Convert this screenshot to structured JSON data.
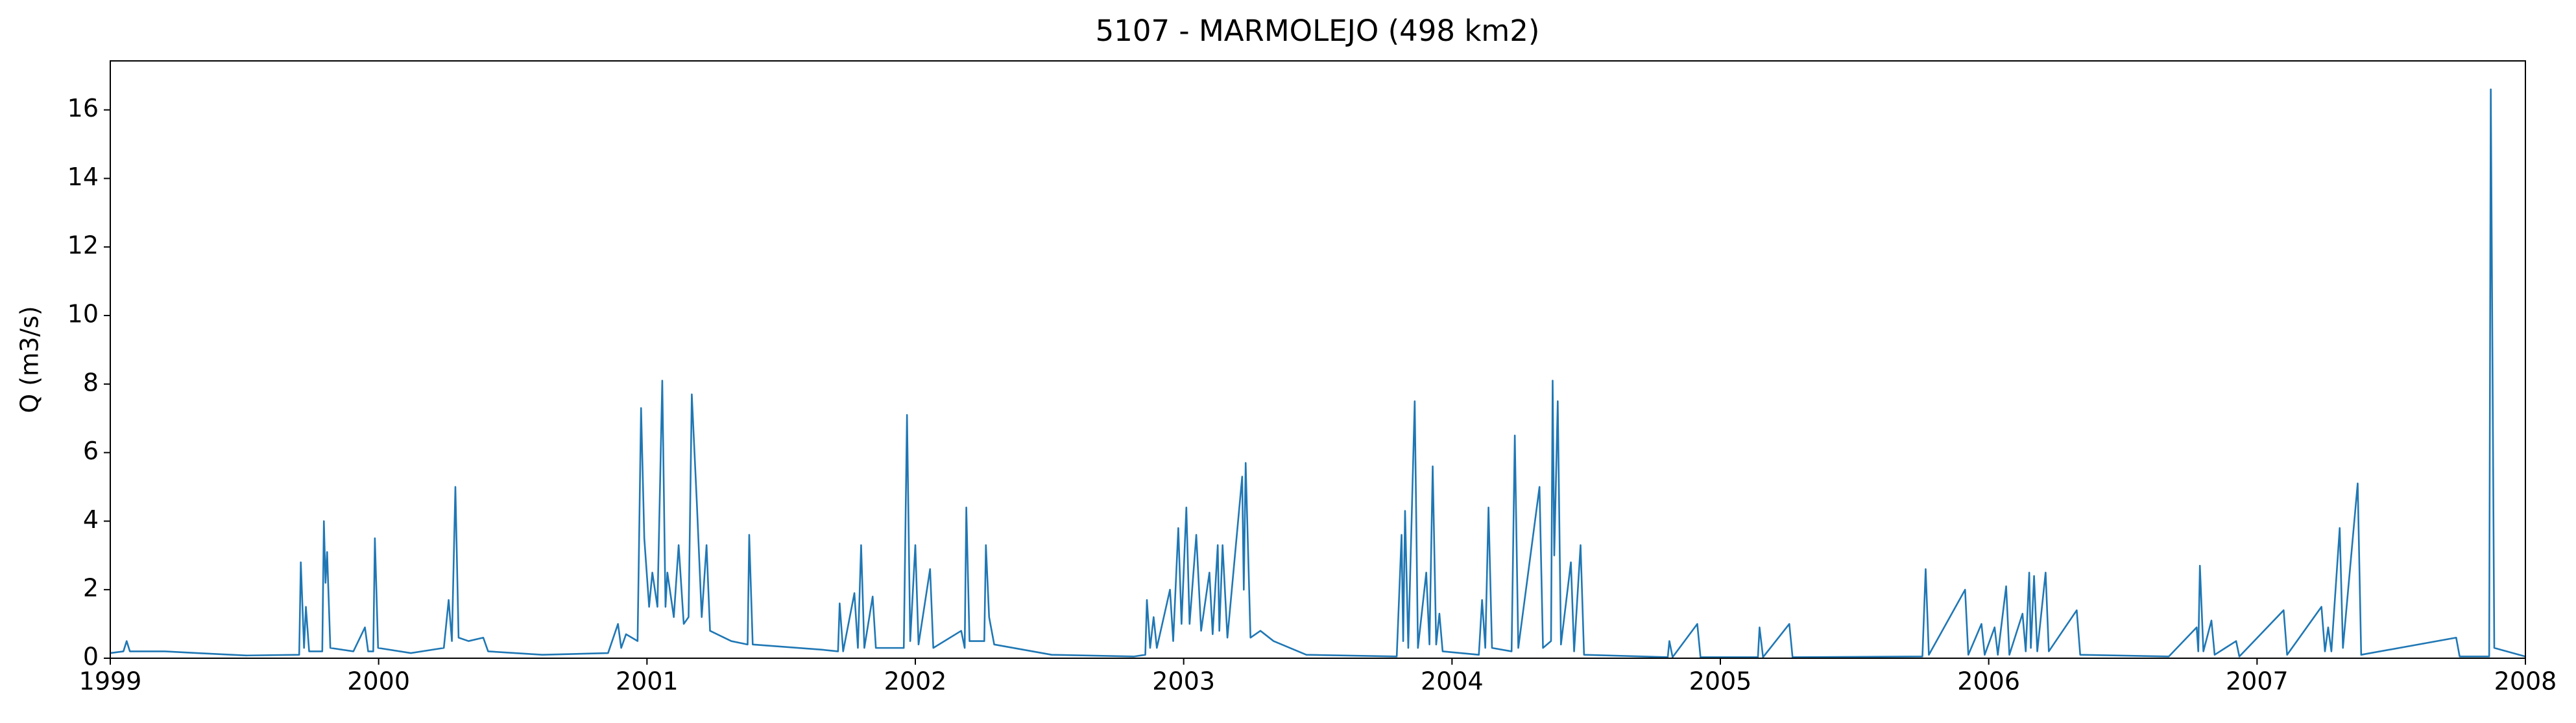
{
  "chart_data": {
    "type": "line",
    "title": "5107 - MARMOLEJO (498 km2)",
    "y_label": "Q (m3/s)",
    "color": "#1f77b4",
    "xlim": [
      1999,
      2008
    ],
    "xticks": [
      1999,
      2000,
      2001,
      2002,
      2003,
      2004,
      2005,
      2006,
      2007,
      2008
    ],
    "ylim": [
      0,
      17.43
    ],
    "yticks": [
      0,
      2,
      4,
      6,
      8,
      10,
      12,
      14,
      16
    ],
    "x": [
      1999.0,
      1999.049,
      1999.061,
      1999.073,
      1999.202,
      1999.324,
      1999.508,
      1999.704,
      1999.71,
      1999.722,
      1999.729,
      1999.741,
      1999.79,
      1999.796,
      1999.802,
      1999.808,
      1999.82,
      1999.906,
      1999.949,
      1999.961,
      1999.98,
      1999.986,
      1999.998,
      2000.12,
      2000.243,
      2000.261,
      2000.273,
      2000.286,
      2000.298,
      2000.335,
      2000.39,
      2000.408,
      2000.61,
      2000.855,
      2000.892,
      2000.904,
      2000.922,
      2000.965,
      2000.978,
      2000.99,
      2001.008,
      2001.02,
      2001.039,
      2001.057,
      2001.069,
      2001.076,
      2001.1,
      2001.118,
      2001.137,
      2001.155,
      2001.167,
      2001.186,
      2001.204,
      2001.222,
      2001.235,
      2001.314,
      2001.375,
      2001.381,
      2001.394,
      2001.651,
      2001.712,
      2001.718,
      2001.731,
      2001.773,
      2001.786,
      2001.798,
      2001.81,
      2001.841,
      2001.853,
      2001.957,
      2001.969,
      2001.981,
      2002.0,
      2002.012,
      2002.055,
      2002.067,
      2002.171,
      2002.184,
      2002.19,
      2002.202,
      2002.257,
      2002.263,
      2002.275,
      2002.294,
      2002.508,
      2002.814,
      2002.857,
      2002.863,
      2002.875,
      2002.888,
      2002.9,
      2002.949,
      2002.961,
      2002.98,
      2002.992,
      2003.01,
      2003.022,
      2003.047,
      2003.065,
      2003.096,
      2003.108,
      2003.127,
      2003.133,
      2003.145,
      2003.163,
      2003.218,
      2003.224,
      2003.231,
      2003.249,
      2003.286,
      2003.335,
      2003.457,
      2003.794,
      2003.812,
      2003.818,
      2003.825,
      2003.837,
      2003.861,
      2003.873,
      2003.904,
      2003.916,
      2003.928,
      2003.941,
      2003.953,
      2003.965,
      2004.1,
      2004.112,
      2004.124,
      2004.136,
      2004.149,
      2004.222,
      2004.234,
      2004.247,
      2004.326,
      2004.339,
      2004.369,
      2004.375,
      2004.381,
      2004.394,
      2004.406,
      2004.443,
      2004.455,
      2004.479,
      2004.492,
      2004.804,
      2004.81,
      2004.822,
      2004.914,
      2004.926,
      2005.14,
      2005.146,
      2005.159,
      2005.257,
      2005.269,
      2005.753,
      2005.765,
      2005.777,
      2005.912,
      2005.924,
      2005.973,
      2005.985,
      2006.022,
      2006.034,
      2006.065,
      2006.077,
      2006.126,
      2006.138,
      2006.151,
      2006.157,
      2006.169,
      2006.181,
      2006.212,
      2006.224,
      2006.328,
      2006.341,
      2006.671,
      2006.775,
      2006.781,
      2006.787,
      2006.8,
      2006.83,
      2006.842,
      2006.922,
      2006.934,
      2007.099,
      2007.112,
      2007.24,
      2007.253,
      2007.265,
      2007.277,
      2007.308,
      2007.32,
      2007.375,
      2007.388,
      2007.742,
      2007.755,
      2007.865,
      2007.871,
      2007.884,
      2008.0
    ],
    "values": [
      0.15,
      0.2,
      0.5,
      0.2,
      0.2,
      0.15,
      0.08,
      0.1,
      2.8,
      0.3,
      1.5,
      0.2,
      0.2,
      4.0,
      2.2,
      3.1,
      0.3,
      0.2,
      0.9,
      0.2,
      0.2,
      3.5,
      0.3,
      0.15,
      0.3,
      1.7,
      0.5,
      5.0,
      0.6,
      0.5,
      0.6,
      0.2,
      0.1,
      0.15,
      1.0,
      0.3,
      0.7,
      0.5,
      7.3,
      3.5,
      1.5,
      2.5,
      1.5,
      8.1,
      1.5,
      2.5,
      1.2,
      3.3,
      1.0,
      1.2,
      7.7,
      4.5,
      1.2,
      3.3,
      0.8,
      0.5,
      0.4,
      3.6,
      0.4,
      0.25,
      0.2,
      1.6,
      0.2,
      1.9,
      0.3,
      3.3,
      0.3,
      1.8,
      0.3,
      0.3,
      7.1,
      0.5,
      3.3,
      0.4,
      2.6,
      0.3,
      0.8,
      0.3,
      4.4,
      0.5,
      0.5,
      3.3,
      1.2,
      0.4,
      0.1,
      0.05,
      0.1,
      1.7,
      0.3,
      1.2,
      0.3,
      2.0,
      0.5,
      3.8,
      1.0,
      4.4,
      1.0,
      3.6,
      0.8,
      2.5,
      0.7,
      3.3,
      0.8,
      3.3,
      0.6,
      5.3,
      2.0,
      5.7,
      0.6,
      0.8,
      0.5,
      0.1,
      0.05,
      3.6,
      0.5,
      4.3,
      0.3,
      7.5,
      0.3,
      2.5,
      0.4,
      5.6,
      0.4,
      1.3,
      0.2,
      0.1,
      1.7,
      0.3,
      4.4,
      0.3,
      0.2,
      6.5,
      0.3,
      5.0,
      0.3,
      0.5,
      8.1,
      3,
      7.5,
      0.4,
      2.8,
      0.2,
      3.3,
      0.1,
      0.03,
      0.5,
      0.03,
      1.0,
      0.03,
      0.03,
      0.9,
      0.03,
      1.0,
      0.03,
      0.05,
      2.6,
      0.1,
      2.0,
      0.1,
      1.0,
      0.1,
      0.9,
      0.1,
      2.1,
      0.1,
      1.3,
      0.2,
      2.5,
      0.3,
      2.4,
      0.2,
      2.5,
      0.2,
      1.4,
      0.1,
      0.05,
      0.9,
      0.2,
      2.7,
      0.2,
      1.1,
      0.1,
      0.5,
      0.05,
      1.4,
      0.1,
      1.5,
      0.2,
      0.9,
      0.2,
      3.8,
      0.3,
      5.1,
      0.1,
      0.6,
      0.05,
      0.05,
      16.6,
      0.3,
      0.05
    ]
  }
}
